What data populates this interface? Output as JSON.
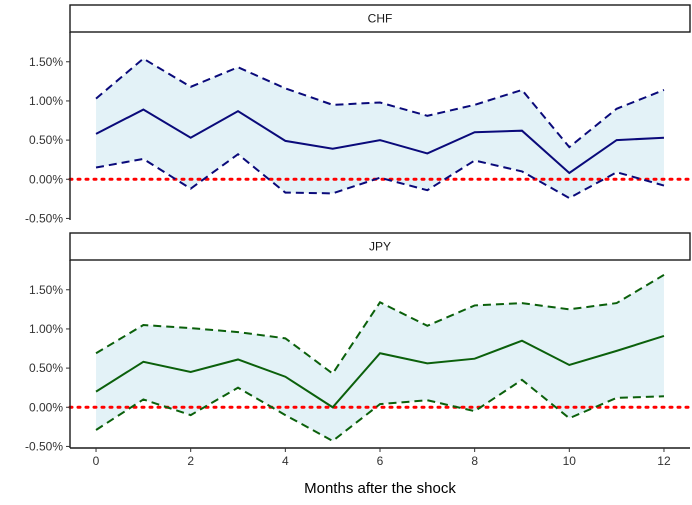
{
  "chart_data": {
    "type": "line",
    "xlabel": "Months after the shock",
    "x": [
      0,
      1,
      2,
      3,
      4,
      5,
      6,
      7,
      8,
      9,
      10,
      11,
      12
    ],
    "x_ticks": [
      "0",
      "2",
      "4",
      "6",
      "8",
      "10",
      "12"
    ],
    "x_tick_values": [
      0,
      2,
      4,
      6,
      8,
      10,
      12
    ],
    "xlim": [
      -0.55,
      12.55
    ],
    "y_tick_values": [
      -0.005,
      0,
      0.005,
      0.01,
      0.015
    ],
    "y_ticks": [
      "-0.50%",
      "0.00%",
      "0.50%",
      "1.00%",
      "1.50%"
    ],
    "zero_line": {
      "value": 0,
      "color": "#ff0000",
      "style": "dotted"
    },
    "band_color": "#e3f2f7",
    "grid": false,
    "panels": [
      {
        "strip": "CHF",
        "ylim": [
          -0.0052,
          0.0188
        ],
        "color": "#0a0a7a",
        "estimate": [
          0.0058,
          0.0089,
          0.0053,
          0.0087,
          0.0049,
          0.0039,
          0.005,
          0.0033,
          0.006,
          0.0062,
          0.0008,
          0.005,
          0.0053
        ],
        "upper": [
          0.0103,
          0.0154,
          0.0118,
          0.0143,
          0.0116,
          0.0095,
          0.0098,
          0.0081,
          0.0095,
          0.0114,
          0.0041,
          0.009,
          0.0114
        ],
        "lower": [
          0.0015,
          0.0026,
          -0.0012,
          0.0032,
          -0.0017,
          -0.0018,
          0.0002,
          -0.0014,
          0.0024,
          0.001,
          -0.0024,
          0.0009,
          -0.0008
        ]
      },
      {
        "strip": "JPY",
        "ylim": [
          -0.0052,
          0.0188
        ],
        "color": "#0b600b",
        "estimate": [
          0.002,
          0.0058,
          0.0045,
          0.0061,
          0.0039,
          0.0,
          0.0069,
          0.0056,
          0.0062,
          0.0085,
          0.0054,
          0.0072,
          0.0091
        ],
        "upper": [
          0.0069,
          0.0105,
          0.0101,
          0.0096,
          0.0088,
          0.0043,
          0.0134,
          0.0104,
          0.013,
          0.0133,
          0.0125,
          0.0133,
          0.0169
        ],
        "lower": [
          -0.0029,
          0.001,
          -0.001,
          0.0025,
          -0.001,
          -0.0043,
          0.0004,
          0.0009,
          -0.0005,
          0.0035,
          -0.0014,
          0.0012,
          0.0014
        ]
      }
    ]
  }
}
